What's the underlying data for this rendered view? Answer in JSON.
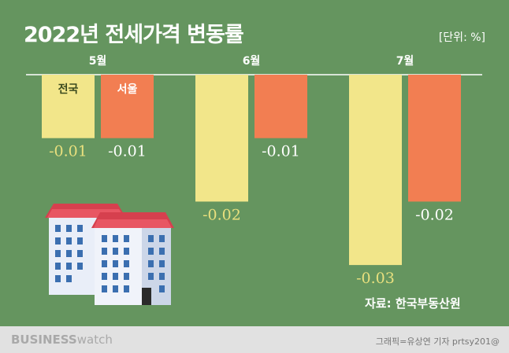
{
  "title": "2022년 전세가격 변동률",
  "unit": "[단위: %]",
  "source": "자료: 한국부동산원",
  "footer": {
    "brand_bold": "BUSINESS",
    "brand_light": "watch",
    "credit": "그래픽=유상연 기자 prtsy201@"
  },
  "colors": {
    "background": "#65955f",
    "nationwide": "#f2e68a",
    "seoul": "#f27e52",
    "nationwide_label": "#e9e07e",
    "seoul_label": "#ffffff"
  },
  "chart_data": {
    "type": "bar",
    "title": "2022년 전세가격 변동률",
    "categories": [
      "5월",
      "6월",
      "7월"
    ],
    "series": [
      {
        "name": "전국",
        "values": [
          -0.01,
          -0.02,
          -0.03
        ],
        "labels": [
          "-0.01",
          "-0.02",
          "-0.03"
        ]
      },
      {
        "name": "서울",
        "values": [
          -0.01,
          -0.01,
          -0.02
        ],
        "labels": [
          "-0.01",
          "-0.01",
          "-0.02"
        ]
      }
    ],
    "ylim": [
      -0.03,
      0
    ],
    "legend_placement": "inside-first-bars",
    "grid": false
  }
}
